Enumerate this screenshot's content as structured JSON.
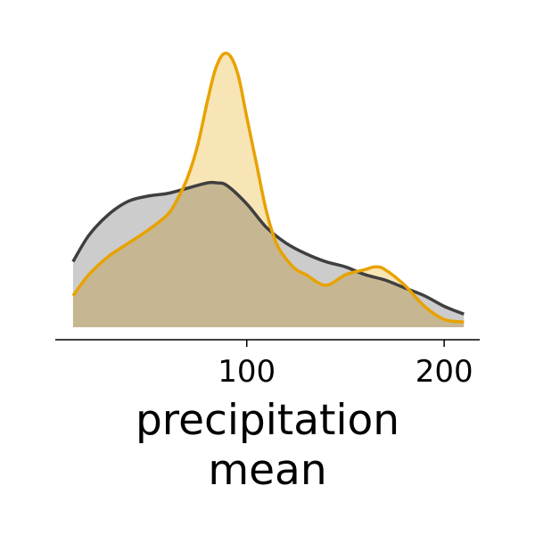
{
  "chart_data": {
    "type": "area",
    "title": "",
    "xlabel_lines": [
      "precipitation",
      "mean"
    ],
    "ylabel": "",
    "xlim": [
      3,
      218
    ],
    "ylim": [
      0,
      1.05
    ],
    "x_ticks": [
      100,
      200
    ],
    "x_tick_labels": [
      "100",
      "200"
    ],
    "grid": false,
    "legend": "none",
    "series": [
      {
        "color": "#3f3f3f",
        "fill": "#c6c6c6",
        "x": [
          12,
          20,
          30,
          40,
          50,
          60,
          70,
          80,
          85,
          90,
          100,
          110,
          120,
          130,
          140,
          150,
          160,
          170,
          180,
          190,
          200,
          210
        ],
        "y": [
          0.25,
          0.35,
          0.43,
          0.48,
          0.5,
          0.51,
          0.53,
          0.55,
          0.55,
          0.54,
          0.47,
          0.38,
          0.32,
          0.28,
          0.25,
          0.23,
          0.2,
          0.18,
          0.15,
          0.12,
          0.08,
          0.05
        ]
      },
      {
        "color": "#e8a200",
        "fill": "#f7e2ae",
        "x": [
          12,
          20,
          30,
          40,
          50,
          60,
          65,
          70,
          75,
          80,
          84,
          88,
          92,
          96,
          100,
          105,
          110,
          115,
          120,
          125,
          130,
          140,
          150,
          160,
          165,
          170,
          180,
          190,
          200,
          210
        ],
        "y": [
          0.12,
          0.2,
          0.27,
          0.32,
          0.37,
          0.43,
          0.49,
          0.57,
          0.69,
          0.86,
          0.98,
          1.04,
          1.03,
          0.95,
          0.8,
          0.62,
          0.44,
          0.32,
          0.26,
          0.22,
          0.2,
          0.16,
          0.2,
          0.22,
          0.23,
          0.22,
          0.16,
          0.08,
          0.03,
          0.02
        ]
      }
    ]
  }
}
